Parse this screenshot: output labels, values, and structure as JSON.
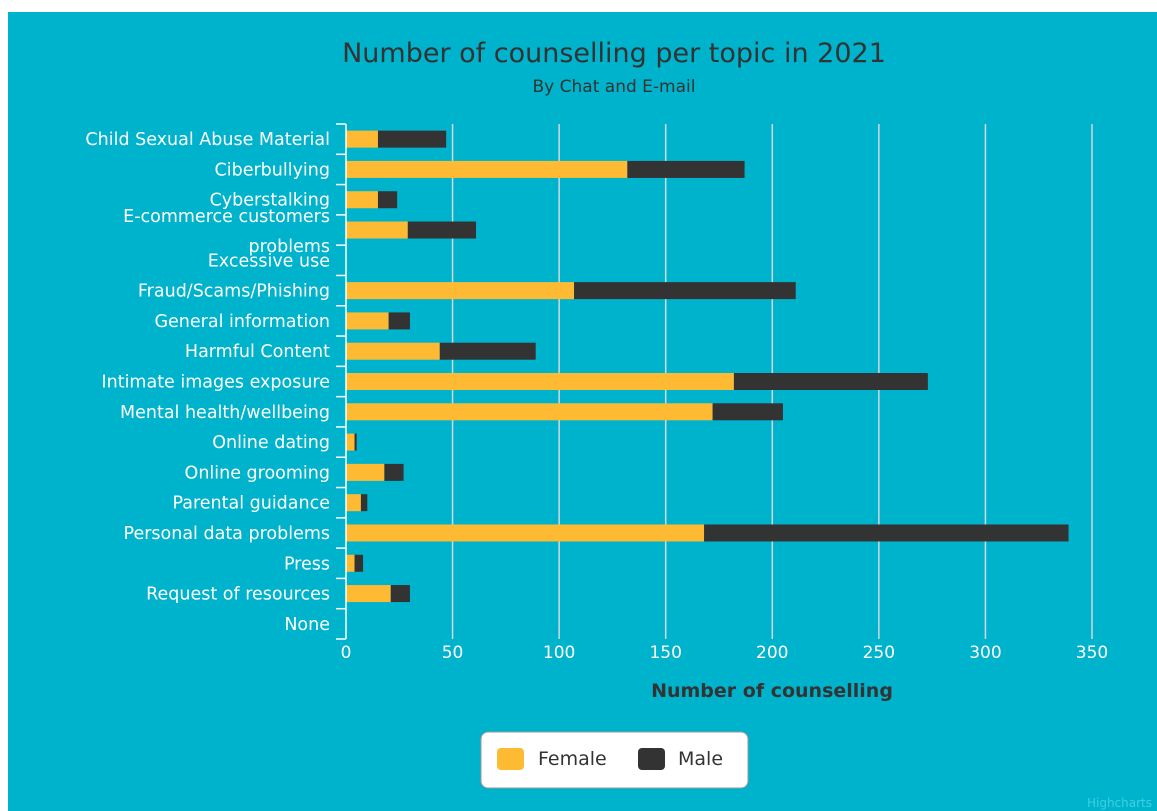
{
  "chart_data": {
    "type": "bar",
    "stacked": true,
    "orientation": "horizontal",
    "title": "Number of counselling per topic in 2021",
    "subtitle": "By Chat and E-mail",
    "xlabel": "Number of counselling",
    "ylabel": "",
    "xlim": [
      0,
      350
    ],
    "ticks": [
      "0",
      "50",
      "100",
      "150",
      "200",
      "250",
      "300",
      "350"
    ],
    "tick_values": [
      0,
      50,
      100,
      150,
      200,
      250,
      300,
      350
    ],
    "grid": true,
    "legend_position": "bottom-center",
    "categories": [
      "Child Sexual Abuse Material",
      "Ciberbullying",
      "Cyberstalking",
      "E-commerce customers problems",
      "Excessive use",
      "Fraud/Scams/Phishing",
      "General information",
      "Harmful Content",
      "Intimate images exposure",
      "Mental health/wellbeing",
      "Online dating",
      "Online grooming",
      "Parental guidance",
      "Personal data problems",
      "Press",
      "Request of resources",
      "None"
    ],
    "series": [
      {
        "name": "Female",
        "color": "#ffba33",
        "values": [
          15,
          132,
          15,
          29,
          0,
          107,
          20,
          44,
          182,
          172,
          4,
          18,
          7,
          168,
          4,
          21,
          0
        ]
      },
      {
        "name": "Male",
        "color": "#333333",
        "values": [
          32,
          55,
          9,
          32,
          0,
          104,
          10,
          45,
          91,
          33,
          1,
          9,
          3,
          171,
          4,
          9,
          0
        ]
      }
    ]
  },
  "colors": {
    "background": "#00b3cd",
    "gridline": "#cfd8dc",
    "female": "#ffba33",
    "male": "#333333"
  },
  "credits": "Highcharts"
}
